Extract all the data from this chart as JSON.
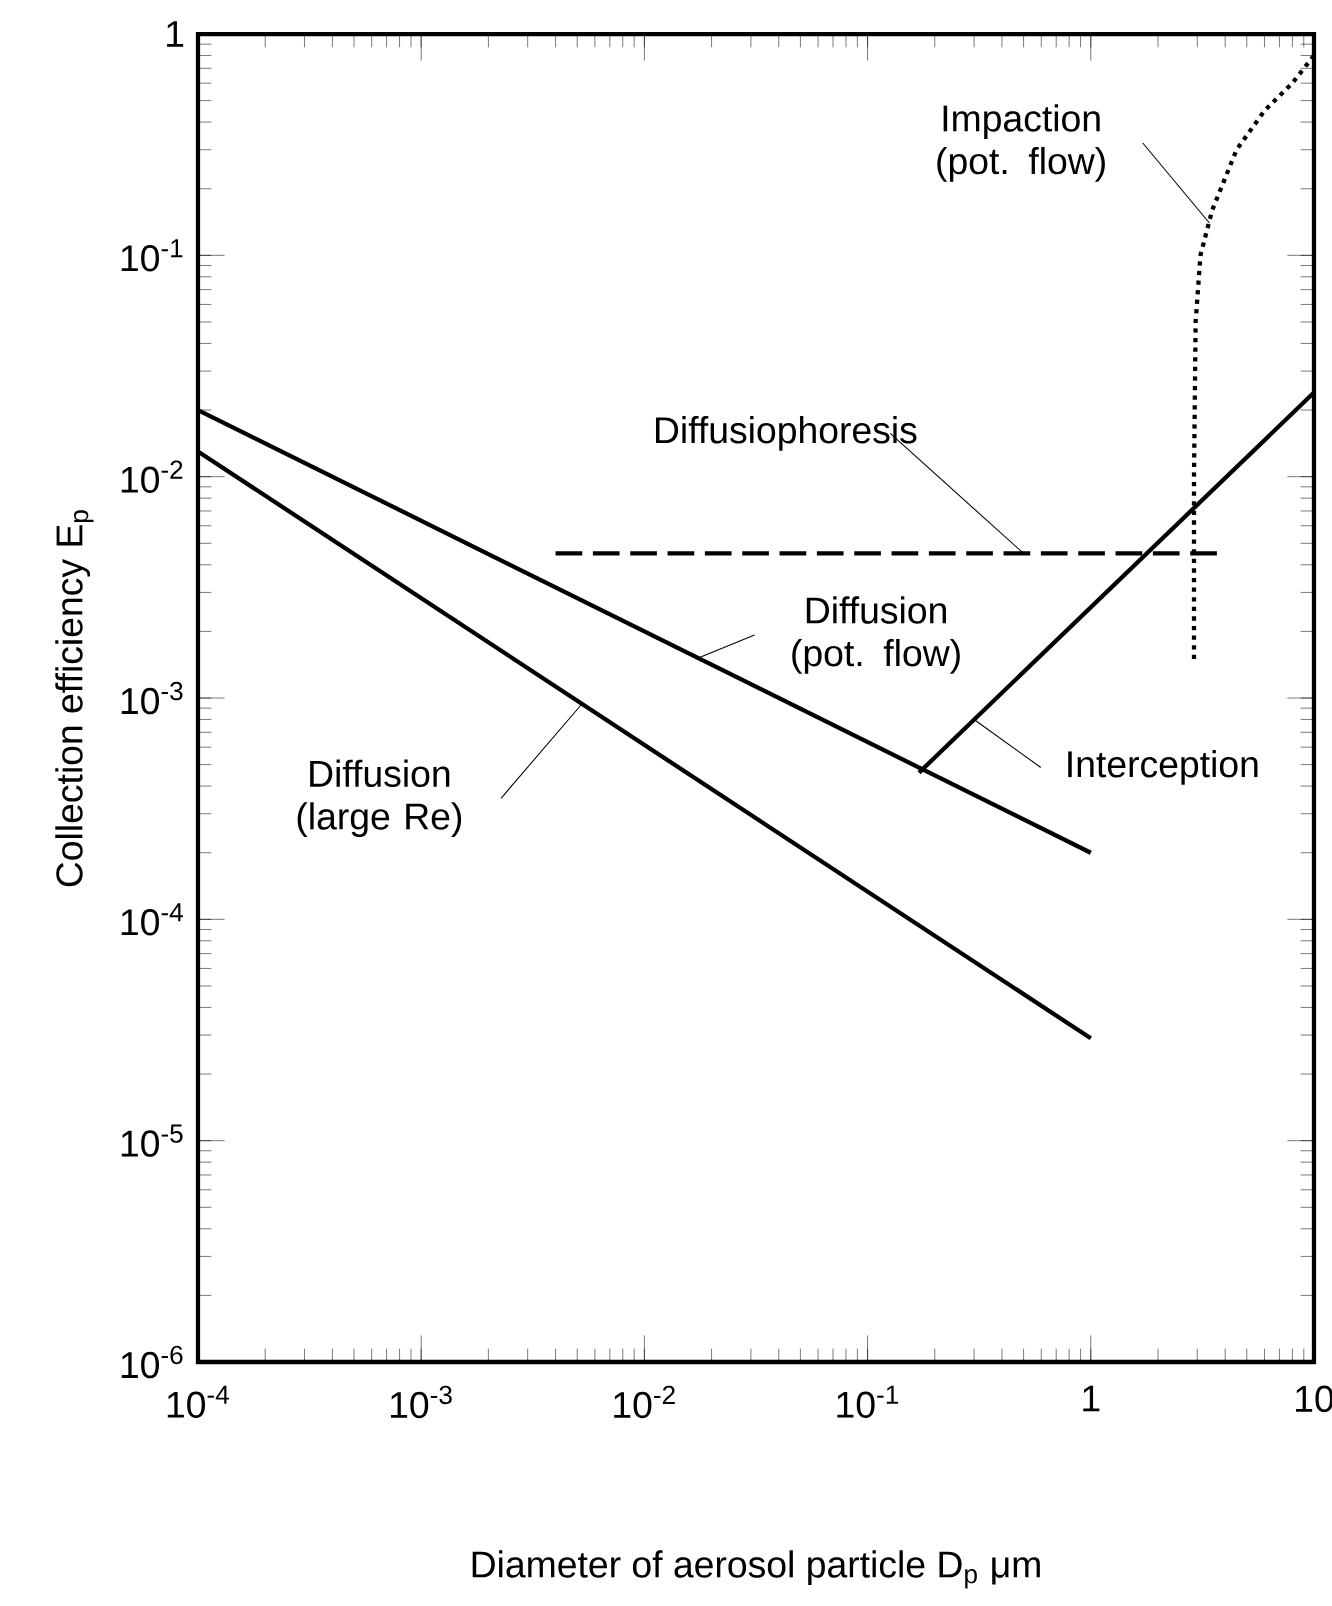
{
  "chart_data": {
    "type": "line",
    "xlabel": "Diameter of aerosol particle D$_{p}$ μm",
    "ylabel": "Collection efficiency  E$_{p}$",
    "log": "xy",
    "xlim": [
      0.0001,
      10
    ],
    "ylim": [
      1e-06,
      1
    ],
    "xticks": [
      {
        "value": 0.0001,
        "label": "10$^{-4}$"
      },
      {
        "value": 0.001,
        "label": "10$^{-3}$"
      },
      {
        "value": 0.01,
        "label": "10$^{-2}$"
      },
      {
        "value": 0.1,
        "label": "10$^{-1}$"
      },
      1,
      10
    ],
    "yticks": [
      {
        "value": 1e-06,
        "label": "10$^{-6}$"
      },
      {
        "value": 1e-05,
        "label": "10$^{-5}$"
      },
      {
        "value": 0.0001,
        "label": "10$^{-4}$"
      },
      {
        "value": 0.001,
        "label": "10$^{-3}$"
      },
      {
        "value": 0.01,
        "label": "10$^{-2}$"
      },
      {
        "value": 0.1,
        "label": "10$^{-1}$"
      },
      1
    ],
    "marker": "none",
    "series": [
      {
        "color": "#000000",
        "line_style": "solid",
        "x": [
          0.0001,
          1
        ],
        "values": [
          0.02,
          0.0002
        ]
      },
      {
        "color": "#000000",
        "line_style": "solid",
        "x": [
          0.0001,
          1
        ],
        "values": [
          0.013,
          2.9e-05
        ]
      },
      {
        "color": "#000000",
        "line_style": "solid",
        "x": [
          0.17,
          10
        ],
        "values": [
          0.00046,
          0.024
        ]
      },
      {
        "color": "#000000",
        "line_style": "dashed",
        "x": [
          0.004,
          4
        ],
        "values": [
          0.0045,
          0.0045
        ]
      },
      {
        "color": "#000000",
        "line_style": "dotted",
        "x": [
          2.9,
          2.9,
          2.95,
          3.1,
          3.5,
          4.5,
          6,
          8,
          10
        ],
        "values": [
          0.0015,
          0.01,
          0.05,
          0.1,
          0.16,
          0.3,
          0.45,
          0.6,
          0.8
        ]
      }
    ],
    "annotations": [
      {
        "text": "Impaction (pot. flow)",
        "x": 3.4,
        "y": 0.14
      },
      {
        "text": "Diffusiophoresis",
        "x": 0.5,
        "y": 0.0045
      },
      {
        "text": "Diffusion (pot. flow)",
        "x": 0.017,
        "y": 0.0015
      },
      {
        "text": "Diffusion (large Re)",
        "x": 0.0052,
        "y": 0.00093
      },
      {
        "text": "Interception",
        "x": 0.3,
        "y": 0.0008
      }
    ]
  }
}
